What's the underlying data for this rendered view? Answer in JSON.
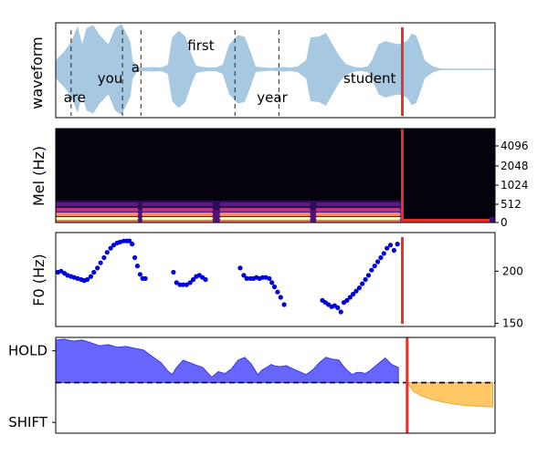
{
  "chart_data": [
    {
      "type": "area",
      "panel": "waveform",
      "ylabel": "waveform",
      "color": "#a6c8e0",
      "envelope": [
        [
          0.0,
          0.2
        ],
        [
          0.02,
          0.4
        ],
        [
          0.035,
          0.6
        ],
        [
          0.05,
          0.95
        ],
        [
          0.06,
          0.55
        ],
        [
          0.07,
          0.9
        ],
        [
          0.085,
          0.97
        ],
        [
          0.1,
          0.75
        ],
        [
          0.12,
          0.55
        ],
        [
          0.135,
          0.9
        ],
        [
          0.15,
          1.0
        ],
        [
          0.16,
          0.8
        ],
        [
          0.17,
          0.6
        ],
        [
          0.175,
          0.2
        ],
        [
          0.185,
          0.05
        ],
        [
          0.2,
          0.04
        ],
        [
          0.22,
          0.05
        ],
        [
          0.24,
          0.04
        ],
        [
          0.255,
          0.1
        ],
        [
          0.265,
          0.7
        ],
        [
          0.28,
          0.85
        ],
        [
          0.295,
          0.72
        ],
        [
          0.31,
          0.3
        ],
        [
          0.32,
          0.08
        ],
        [
          0.335,
          0.05
        ],
        [
          0.35,
          0.04
        ],
        [
          0.365,
          0.04
        ],
        [
          0.38,
          0.1
        ],
        [
          0.395,
          0.55
        ],
        [
          0.415,
          0.75
        ],
        [
          0.43,
          0.72
        ],
        [
          0.445,
          0.35
        ],
        [
          0.455,
          0.06
        ],
        [
          0.475,
          0.04
        ],
        [
          0.49,
          0.03
        ],
        [
          0.505,
          0.04
        ],
        [
          0.52,
          0.05
        ],
        [
          0.535,
          0.04
        ],
        [
          0.55,
          0.06
        ],
        [
          0.57,
          0.2
        ],
        [
          0.58,
          0.7
        ],
        [
          0.6,
          0.72
        ],
        [
          0.615,
          0.8
        ],
        [
          0.63,
          0.55
        ],
        [
          0.645,
          0.3
        ],
        [
          0.66,
          0.12
        ],
        [
          0.68,
          0.05
        ],
        [
          0.695,
          0.04
        ],
        [
          0.71,
          0.06
        ],
        [
          0.72,
          0.2
        ],
        [
          0.735,
          0.55
        ],
        [
          0.75,
          0.62
        ],
        [
          0.765,
          0.58
        ],
        [
          0.78,
          0.55
        ],
        [
          0.8,
          0.62
        ],
        [
          0.81,
          0.78
        ],
        [
          0.82,
          0.75
        ],
        [
          0.83,
          0.5
        ],
        [
          0.84,
          0.2
        ],
        [
          0.85,
          0.12
        ],
        [
          0.86,
          0.06
        ],
        [
          0.875,
          0.02
        ],
        [
          0.9,
          0.01
        ],
        [
          1.0,
          0.0
        ]
      ],
      "words": [
        {
          "text": "are",
          "t": 0.018,
          "level": 0.72
        },
        {
          "text": "you",
          "t": 0.095,
          "level": 0.3
        },
        {
          "text": "a",
          "t": 0.172,
          "level": 0.06
        },
        {
          "text": "first",
          "t": 0.3,
          "level": -0.42
        },
        {
          "text": "year",
          "t": 0.458,
          "level": 0.72
        },
        {
          "text": "student",
          "t": 0.655,
          "level": 0.3
        }
      ],
      "boundaries": [
        0.035,
        0.152,
        0.194,
        0.408,
        0.508
      ],
      "current_time": 0.789
    },
    {
      "type": "heatmap",
      "panel": "mel-spectrogram",
      "ylabel": "Mel (Hz)",
      "yticks": [
        "0",
        "512",
        "1024",
        "2048",
        "4096"
      ],
      "colormap": "magma",
      "energy_segments": [
        [
          0.0,
          0.188
        ],
        [
          0.196,
          0.358
        ],
        [
          0.373,
          0.58
        ],
        [
          0.592,
          0.785
        ]
      ],
      "current_time": 0.789
    },
    {
      "type": "scatter",
      "panel": "pitch",
      "ylabel": "F0 (Hz)",
      "yticks": [
        150,
        200
      ],
      "ylim": [
        147,
        237
      ],
      "color": "#0000dd",
      "points": [
        [
          0.005,
          199
        ],
        [
          0.012,
          200
        ],
        [
          0.02,
          198
        ],
        [
          0.027,
          196
        ],
        [
          0.035,
          195
        ],
        [
          0.042,
          194
        ],
        [
          0.05,
          193
        ],
        [
          0.058,
          192
        ],
        [
          0.065,
          191
        ],
        [
          0.072,
          192
        ],
        [
          0.08,
          195
        ],
        [
          0.087,
          199
        ],
        [
          0.095,
          203
        ],
        [
          0.102,
          208
        ],
        [
          0.11,
          213
        ],
        [
          0.117,
          218
        ],
        [
          0.125,
          222
        ],
        [
          0.132,
          225
        ],
        [
          0.14,
          227
        ],
        [
          0.147,
          228
        ],
        [
          0.155,
          229
        ],
        [
          0.162,
          229
        ],
        [
          0.168,
          229
        ],
        [
          0.174,
          226
        ],
        [
          0.18,
          213
        ],
        [
          0.186,
          205
        ],
        [
          0.192,
          197
        ],
        [
          0.198,
          193
        ],
        [
          0.204,
          193
        ],
        [
          0.268,
          199
        ],
        [
          0.275,
          189
        ],
        [
          0.283,
          187
        ],
        [
          0.29,
          187
        ],
        [
          0.298,
          187
        ],
        [
          0.306,
          189
        ],
        [
          0.313,
          192
        ],
        [
          0.32,
          195
        ],
        [
          0.327,
          196
        ],
        [
          0.334,
          194
        ],
        [
          0.341,
          192
        ],
        [
          0.42,
          203
        ],
        [
          0.428,
          196
        ],
        [
          0.435,
          193
        ],
        [
          0.443,
          193
        ],
        [
          0.45,
          193
        ],
        [
          0.457,
          194
        ],
        [
          0.464,
          193
        ],
        [
          0.471,
          194
        ],
        [
          0.478,
          194
        ],
        [
          0.486,
          193
        ],
        [
          0.492,
          189
        ],
        [
          0.498,
          185
        ],
        [
          0.505,
          180
        ],
        [
          0.512,
          175
        ],
        [
          0.52,
          168
        ],
        [
          0.607,
          172
        ],
        [
          0.614,
          170
        ],
        [
          0.621,
          168
        ],
        [
          0.628,
          166
        ],
        [
          0.635,
          167
        ],
        [
          0.642,
          165
        ],
        [
          0.649,
          161
        ],
        [
          0.656,
          170
        ],
        [
          0.663,
          172
        ],
        [
          0.67,
          175
        ],
        [
          0.677,
          178
        ],
        [
          0.684,
          181
        ],
        [
          0.691,
          184
        ],
        [
          0.698,
          188
        ],
        [
          0.705,
          192
        ],
        [
          0.712,
          196
        ],
        [
          0.719,
          201
        ],
        [
          0.726,
          205
        ],
        [
          0.733,
          209
        ],
        [
          0.74,
          213
        ],
        [
          0.747,
          217
        ],
        [
          0.754,
          222
        ],
        [
          0.762,
          225
        ],
        [
          0.77,
          220
        ],
        [
          0.778,
          226
        ]
      ],
      "current_time": 0.789
    },
    {
      "type": "area",
      "panel": "turn-taking",
      "yticks": [
        "HOLD",
        "SHIFT"
      ],
      "ylim": [
        -1.4,
        1.25
      ],
      "hold_color": "#6666ff",
      "shift_color": "#ffc766",
      "hold": [
        [
          0.0,
          1.18
        ],
        [
          0.02,
          1.2
        ],
        [
          0.04,
          1.15
        ],
        [
          0.06,
          1.18
        ],
        [
          0.08,
          1.1
        ],
        [
          0.1,
          1.02
        ],
        [
          0.12,
          1.05
        ],
        [
          0.14,
          0.98
        ],
        [
          0.16,
          1.0
        ],
        [
          0.18,
          0.95
        ],
        [
          0.2,
          0.9
        ],
        [
          0.22,
          0.72
        ],
        [
          0.24,
          0.55
        ],
        [
          0.255,
          0.32
        ],
        [
          0.265,
          0.22
        ],
        [
          0.275,
          0.42
        ],
        [
          0.29,
          0.62
        ],
        [
          0.305,
          0.55
        ],
        [
          0.32,
          0.48
        ],
        [
          0.335,
          0.42
        ],
        [
          0.345,
          0.28
        ],
        [
          0.355,
          0.15
        ],
        [
          0.37,
          0.3
        ],
        [
          0.385,
          0.25
        ],
        [
          0.4,
          0.38
        ],
        [
          0.415,
          0.62
        ],
        [
          0.43,
          0.7
        ],
        [
          0.445,
          0.52
        ],
        [
          0.46,
          0.22
        ],
        [
          0.47,
          0.35
        ],
        [
          0.48,
          0.42
        ],
        [
          0.49,
          0.5
        ],
        [
          0.5,
          0.46
        ],
        [
          0.51,
          0.44
        ],
        [
          0.525,
          0.47
        ],
        [
          0.54,
          0.38
        ],
        [
          0.555,
          0.3
        ],
        [
          0.57,
          0.22
        ],
        [
          0.585,
          0.35
        ],
        [
          0.6,
          0.55
        ],
        [
          0.615,
          0.7
        ],
        [
          0.63,
          0.65
        ],
        [
          0.645,
          0.62
        ],
        [
          0.655,
          0.45
        ],
        [
          0.665,
          0.32
        ],
        [
          0.675,
          0.22
        ],
        [
          0.685,
          0.28
        ],
        [
          0.695,
          0.28
        ],
        [
          0.705,
          0.25
        ],
        [
          0.715,
          0.33
        ],
        [
          0.73,
          0.48
        ],
        [
          0.75,
          0.68
        ],
        [
          0.765,
          0.5
        ],
        [
          0.78,
          0.42
        ],
        [
          0.78,
          0.0
        ]
      ],
      "shift": [
        [
          0.8,
          0.0
        ],
        [
          0.815,
          -0.25
        ],
        [
          0.835,
          -0.38
        ],
        [
          0.86,
          -0.48
        ],
        [
          0.885,
          -0.55
        ],
        [
          0.91,
          -0.6
        ],
        [
          0.94,
          -0.64
        ],
        [
          0.97,
          -0.66
        ],
        [
          0.995,
          -0.67
        ]
      ],
      "current_time": 0.8
    }
  ]
}
